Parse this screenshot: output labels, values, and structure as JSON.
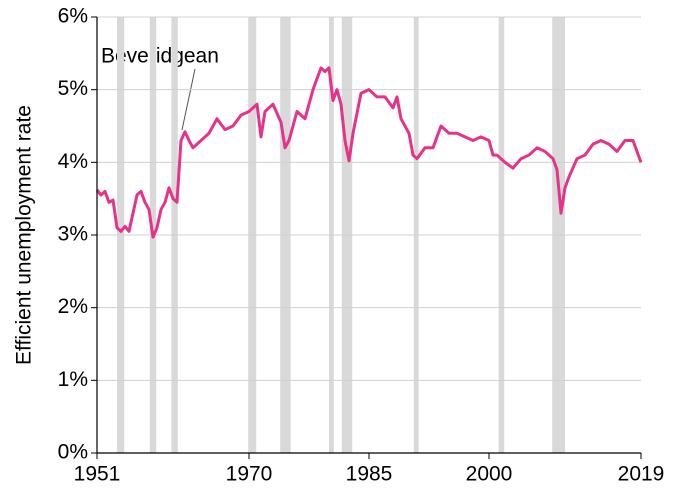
{
  "chart_data": {
    "type": "line",
    "y_label": "Efficient unemployment rate",
    "annotation": "Beveridgean",
    "xlim": [
      1951,
      2019
    ],
    "xticks": [
      1951,
      1970,
      1985,
      2000,
      2019
    ],
    "ylim": [
      0,
      6
    ],
    "yticks": [
      {
        "value": 0,
        "label": "0%"
      },
      {
        "value": 1,
        "label": "1%"
      },
      {
        "value": 2,
        "label": "2%"
      },
      {
        "value": 3,
        "label": "3%"
      },
      {
        "value": 4,
        "label": "4%"
      },
      {
        "value": 5,
        "label": "5%"
      },
      {
        "value": 6,
        "label": "6%"
      }
    ],
    "grid": true,
    "recession_color": "#d9d9d9",
    "recessions": [
      [
        1953.5,
        1954.4
      ],
      [
        1957.6,
        1958.4
      ],
      [
        1960.3,
        1961.1
      ],
      [
        1969.9,
        1970.9
      ],
      [
        1973.9,
        1975.2
      ],
      [
        1980.0,
        1980.6
      ],
      [
        1981.6,
        1982.9
      ],
      [
        1990.6,
        1991.2
      ],
      [
        2001.2,
        2001.9
      ],
      [
        2007.9,
        2009.5
      ]
    ],
    "series": [
      {
        "color": "#e6338a",
        "x": [
          1951,
          1951.5,
          1952,
          1952.5,
          1953,
          1953.5,
          1954,
          1954.5,
          1955,
          1955.5,
          1956,
          1956.5,
          1957,
          1957.5,
          1958,
          1958.5,
          1959,
          1959.5,
          1960,
          1960.5,
          1961,
          1961.5,
          1962,
          1962.5,
          1963,
          1964,
          1965,
          1966,
          1967,
          1968,
          1969,
          1970,
          1971,
          1971.5,
          1972,
          1973,
          1974,
          1974.5,
          1975,
          1976,
          1977,
          1978,
          1979,
          1979.5,
          1980,
          1980.5,
          1981,
          1981.5,
          1982,
          1982.5,
          1983,
          1984,
          1985,
          1986,
          1987,
          1988,
          1988.5,
          1989,
          1990,
          1990.5,
          1991,
          1992,
          1993,
          1994,
          1995,
          1996,
          1997,
          1998,
          1999,
          2000,
          2000.5,
          2001,
          2002,
          2003,
          2004,
          2005,
          2006,
          2007,
          2008,
          2008.5,
          2009,
          2009.5,
          2010,
          2011,
          2012,
          2013,
          2014,
          2015,
          2016,
          2017,
          2018,
          2018.5,
          2019
        ],
        "values": [
          3.62,
          3.55,
          3.6,
          3.45,
          3.48,
          3.1,
          3.05,
          3.12,
          3.05,
          3.3,
          3.55,
          3.6,
          3.45,
          3.35,
          2.97,
          3.1,
          3.35,
          3.45,
          3.65,
          3.5,
          3.45,
          4.3,
          4.42,
          4.3,
          4.2,
          4.3,
          4.4,
          4.6,
          4.45,
          4.5,
          4.65,
          4.7,
          4.8,
          4.35,
          4.7,
          4.8,
          4.55,
          4.2,
          4.3,
          4.7,
          4.6,
          5.0,
          5.3,
          5.25,
          5.3,
          4.85,
          5.0,
          4.8,
          4.3,
          4.02,
          4.4,
          4.95,
          5.0,
          4.9,
          4.9,
          4.75,
          4.9,
          4.6,
          4.4,
          4.1,
          4.05,
          4.2,
          4.2,
          4.5,
          4.4,
          4.4,
          4.35,
          4.3,
          4.35,
          4.3,
          4.1,
          4.1,
          4.0,
          3.92,
          4.05,
          4.1,
          4.2,
          4.15,
          4.05,
          3.9,
          3.3,
          3.65,
          3.8,
          4.05,
          4.1,
          4.25,
          4.3,
          4.25,
          4.15,
          4.3,
          4.3,
          4.15,
          4.0
        ]
      }
    ]
  }
}
